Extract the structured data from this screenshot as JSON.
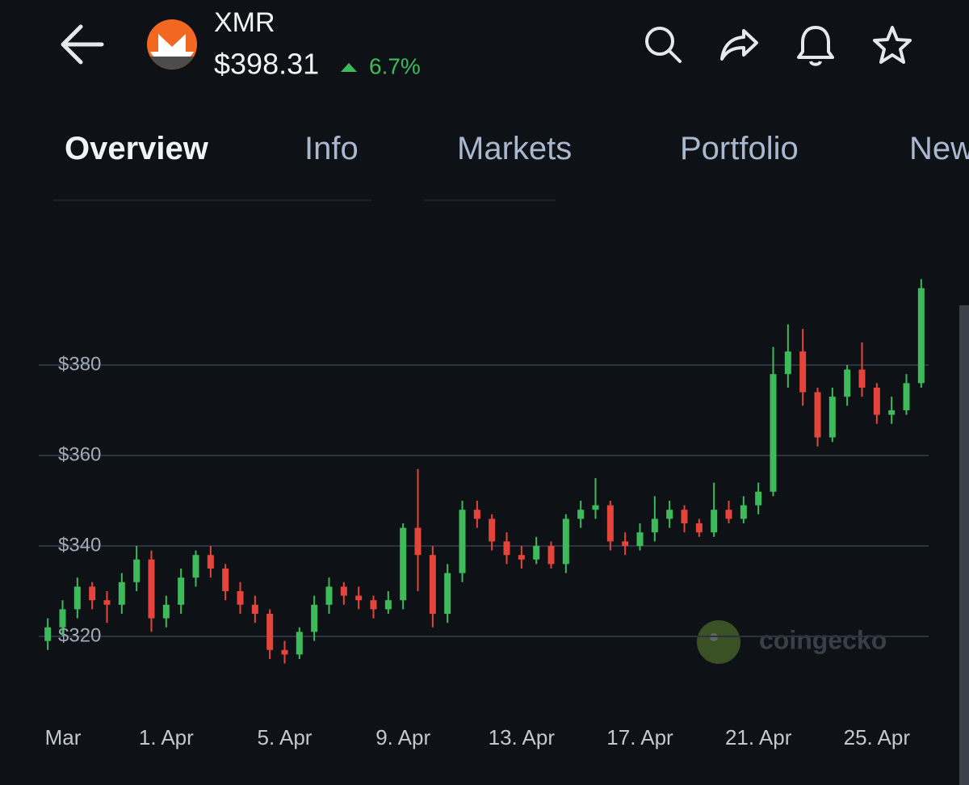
{
  "header": {
    "symbol": "XMR",
    "price": "$398.31",
    "change": "6.7%"
  },
  "tabs": [
    "Overview",
    "Info",
    "Markets",
    "Portfolio",
    "News"
  ],
  "watermark": "coingecko",
  "chart_data": {
    "type": "candlestick",
    "categories": [
      "Mar",
      null,
      null,
      null,
      null,
      null,
      null,
      null,
      "1. Apr",
      null,
      null,
      null,
      null,
      null,
      null,
      null,
      "5. Apr",
      null,
      null,
      null,
      null,
      null,
      null,
      null,
      "9. Apr",
      null,
      null,
      null,
      null,
      null,
      null,
      null,
      "13. Apr",
      null,
      null,
      null,
      null,
      null,
      null,
      null,
      "17. Apr",
      null,
      null,
      null,
      null,
      null,
      null,
      null,
      "21. Apr",
      null,
      null,
      null,
      null,
      null,
      null,
      null,
      "25. Apr",
      null,
      null,
      null
    ],
    "open": [
      319,
      322,
      326,
      331,
      328,
      327,
      332,
      337,
      324,
      327,
      333,
      338,
      335,
      330,
      327,
      325,
      317,
      316,
      321,
      327,
      331,
      329,
      328,
      326,
      328,
      344,
      338,
      325,
      334,
      348,
      346,
      341,
      338,
      337,
      340,
      336,
      346,
      348,
      349,
      341,
      340,
      343,
      346,
      348,
      345,
      343,
      348,
      346,
      349,
      352,
      378,
      383,
      374,
      364,
      373,
      379,
      375,
      369,
      370,
      376
    ],
    "high": [
      324,
      328,
      333,
      332,
      330,
      334,
      340,
      339,
      329,
      335,
      339,
      340,
      336,
      332,
      329,
      326,
      319,
      322,
      329,
      333,
      332,
      331,
      329,
      330,
      345,
      357,
      340,
      336,
      350,
      350,
      347,
      343,
      340,
      342,
      341,
      347,
      350,
      355,
      350,
      343,
      345,
      351,
      350,
      349,
      346,
      354,
      350,
      351,
      354,
      384,
      389,
      388,
      375,
      375,
      380,
      385,
      376,
      373,
      378,
      399
    ],
    "low": [
      317,
      320,
      324,
      326,
      323,
      325,
      330,
      321,
      322,
      325,
      331,
      333,
      328,
      325,
      323,
      315,
      314,
      315,
      319,
      325,
      327,
      326,
      324,
      325,
      326,
      330,
      322,
      323,
      332,
      344,
      339,
      336,
      335,
      336,
      335,
      334,
      344,
      346,
      339,
      338,
      339,
      341,
      344,
      343,
      342,
      342,
      345,
      345,
      347,
      351,
      375,
      371,
      362,
      363,
      371,
      373,
      367,
      367,
      369,
      375
    ],
    "close": [
      322,
      326,
      331,
      328,
      327,
      332,
      337,
      324,
      327,
      333,
      338,
      335,
      330,
      327,
      325,
      317,
      316,
      321,
      327,
      331,
      329,
      328,
      326,
      328,
      344,
      338,
      325,
      334,
      348,
      346,
      341,
      338,
      337,
      340,
      336,
      346,
      348,
      349,
      341,
      340,
      343,
      346,
      348,
      345,
      343,
      348,
      346,
      349,
      352,
      378,
      383,
      374,
      364,
      373,
      379,
      375,
      369,
      370,
      376,
      397
    ],
    "up_color": "#3dbb5a",
    "down_color": "#e5443a",
    "ylim": [
      310,
      400
    ],
    "yticks": [
      {
        "value": 320,
        "label": "$320"
      },
      {
        "value": 340,
        "label": "$340"
      },
      {
        "value": 360,
        "label": "$360"
      },
      {
        "value": 380,
        "label": "$380"
      }
    ],
    "grid": true
  }
}
